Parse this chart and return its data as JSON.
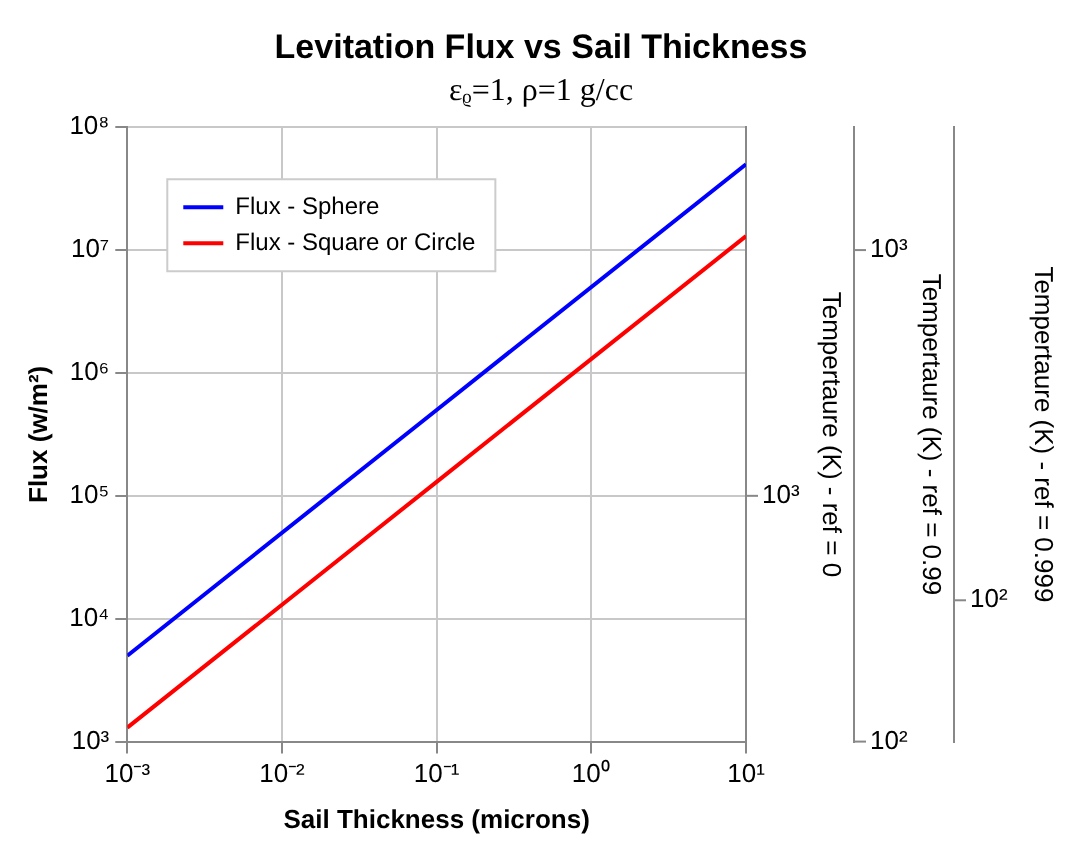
{
  "chart_data": {
    "type": "line",
    "title": "Levitation Flux vs Sail Thickness",
    "subtitle": "εᵨ=1, ρ=1 g/cc",
    "xlabel": "Sail Thickness (microns)",
    "ylabel": "Flux (w/m²)",
    "annotations": [
      "Tempertaure (K) - ref = 0",
      "10³",
      "Tempertaure (K) - ref = 0.99",
      "10³",
      "10²",
      "Tempertaure (K) - ref = 0.999",
      "10²"
    ],
    "series": [
      {
        "name": "Flux - Sphere",
        "color": "#0000ff",
        "x": [
          0.001,
          0.1,
          10
        ],
        "values": [
          5000,
          500000,
          50000000
        ]
      },
      {
        "name": "Flux - Square or Circle",
        "color": "#ff0000",
        "x": [
          0.001,
          0.1,
          10
        ],
        "values": [
          1300,
          130000,
          13000000
        ]
      }
    ],
    "xlim": [
      0.001,
      10
    ],
    "xticks": [
      {
        "value": 0.001,
        "label": "10⁻³"
      },
      {
        "value": 0.01,
        "label": "10⁻²"
      },
      {
        "value": 0.1,
        "label": "10⁻¹"
      },
      {
        "value": 1,
        "label": "10⁰"
      },
      {
        "value": 10,
        "label": "10¹"
      }
    ],
    "ylim": [
      1000,
      100000000
    ],
    "yticks": [
      {
        "value": 1000,
        "label": "10³"
      },
      {
        "value": 10000,
        "label": "10⁴"
      },
      {
        "value": 100000,
        "label": "10⁵"
      },
      {
        "value": 1000000,
        "label": "10⁶"
      },
      {
        "value": 10000000,
        "label": "10⁷"
      },
      {
        "value": 100000000,
        "label": "10⁸"
      }
    ],
    "log": "xy",
    "grid": true,
    "legend": "top left",
    "marker": "none",
    "line_style": "solid"
  }
}
